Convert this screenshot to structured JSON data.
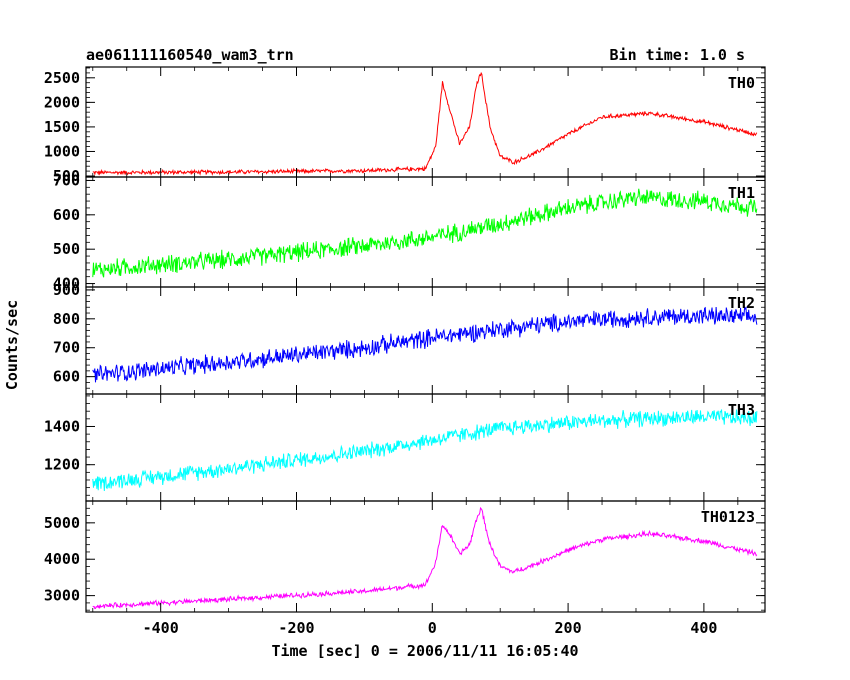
{
  "header": {
    "title": "ae061111160540_wam3_trn",
    "bin_time": "Bin time: 1.0 s"
  },
  "axes": {
    "ylabel": "Counts/sec",
    "xlabel": "Time [sec] 0 = 2006/11/11 16:05:40",
    "xlim": [
      -510,
      490
    ],
    "xticks": [
      -400,
      -200,
      0,
      200,
      400
    ]
  },
  "chart_data": [
    {
      "type": "line",
      "name": "TH0",
      "color": "#ff0000",
      "x_range": [
        -500,
        478
      ],
      "ylim": [
        480,
        2720
      ],
      "yticks": [
        500,
        1000,
        1500,
        2000,
        2500
      ],
      "noise": 50,
      "series_points": [
        [
          -500,
          570
        ],
        [
          -300,
          580
        ],
        [
          -100,
          610
        ],
        [
          -10,
          650
        ],
        [
          5,
          1100
        ],
        [
          15,
          2400
        ],
        [
          25,
          1900
        ],
        [
          40,
          1150
        ],
        [
          55,
          1500
        ],
        [
          65,
          2350
        ],
        [
          72,
          2620
        ],
        [
          85,
          1500
        ],
        [
          100,
          900
        ],
        [
          120,
          780
        ],
        [
          150,
          950
        ],
        [
          200,
          1350
        ],
        [
          250,
          1700
        ],
        [
          320,
          1780
        ],
        [
          400,
          1600
        ],
        [
          478,
          1350
        ]
      ]
    },
    {
      "type": "line",
      "name": "TH1",
      "color": "#00ff00",
      "x_range": [
        -500,
        478
      ],
      "ylim": [
        390,
        710
      ],
      "yticks": [
        400,
        500,
        600,
        700
      ],
      "noise": 32,
      "series_points": [
        [
          -500,
          440
        ],
        [
          -300,
          470
        ],
        [
          -100,
          510
        ],
        [
          0,
          535
        ],
        [
          100,
          575
        ],
        [
          200,
          620
        ],
        [
          300,
          650
        ],
        [
          400,
          640
        ],
        [
          478,
          620
        ]
      ]
    },
    {
      "type": "line",
      "name": "TH2",
      "color": "#0000ff",
      "x_range": [
        -500,
        478
      ],
      "ylim": [
        540,
        910
      ],
      "yticks": [
        600,
        700,
        800,
        900
      ],
      "noise": 38,
      "series_points": [
        [
          -500,
          605
        ],
        [
          -300,
          650
        ],
        [
          -100,
          700
        ],
        [
          0,
          735
        ],
        [
          100,
          765
        ],
        [
          200,
          790
        ],
        [
          300,
          805
        ],
        [
          400,
          810
        ],
        [
          478,
          805
        ]
      ]
    },
    {
      "type": "line",
      "name": "TH3",
      "color": "#00ffff",
      "x_range": [
        -500,
        478
      ],
      "ylim": [
        1010,
        1570
      ],
      "yticks": [
        1200,
        1400
      ],
      "noise": 50,
      "series_points": [
        [
          -500,
          1100
        ],
        [
          -300,
          1180
        ],
        [
          -100,
          1270
        ],
        [
          0,
          1330
        ],
        [
          100,
          1390
        ],
        [
          200,
          1420
        ],
        [
          300,
          1440
        ],
        [
          400,
          1450
        ],
        [
          478,
          1440
        ]
      ]
    },
    {
      "type": "line",
      "name": "TH0123",
      "color": "#ff00ff",
      "x_range": [
        -500,
        478
      ],
      "ylim": [
        2550,
        5600
      ],
      "yticks": [
        3000,
        4000,
        5000
      ],
      "noise": 80,
      "series_points": [
        [
          -500,
          2700
        ],
        [
          -300,
          2900
        ],
        [
          -100,
          3120
        ],
        [
          -10,
          3300
        ],
        [
          5,
          3900
        ],
        [
          15,
          4950
        ],
        [
          25,
          4700
        ],
        [
          40,
          4150
        ],
        [
          55,
          4400
        ],
        [
          65,
          5100
        ],
        [
          72,
          5400
        ],
        [
          85,
          4400
        ],
        [
          100,
          3800
        ],
        [
          120,
          3650
        ],
        [
          150,
          3850
        ],
        [
          200,
          4250
        ],
        [
          250,
          4550
        ],
        [
          320,
          4700
        ],
        [
          400,
          4500
        ],
        [
          478,
          4150
        ]
      ]
    }
  ]
}
